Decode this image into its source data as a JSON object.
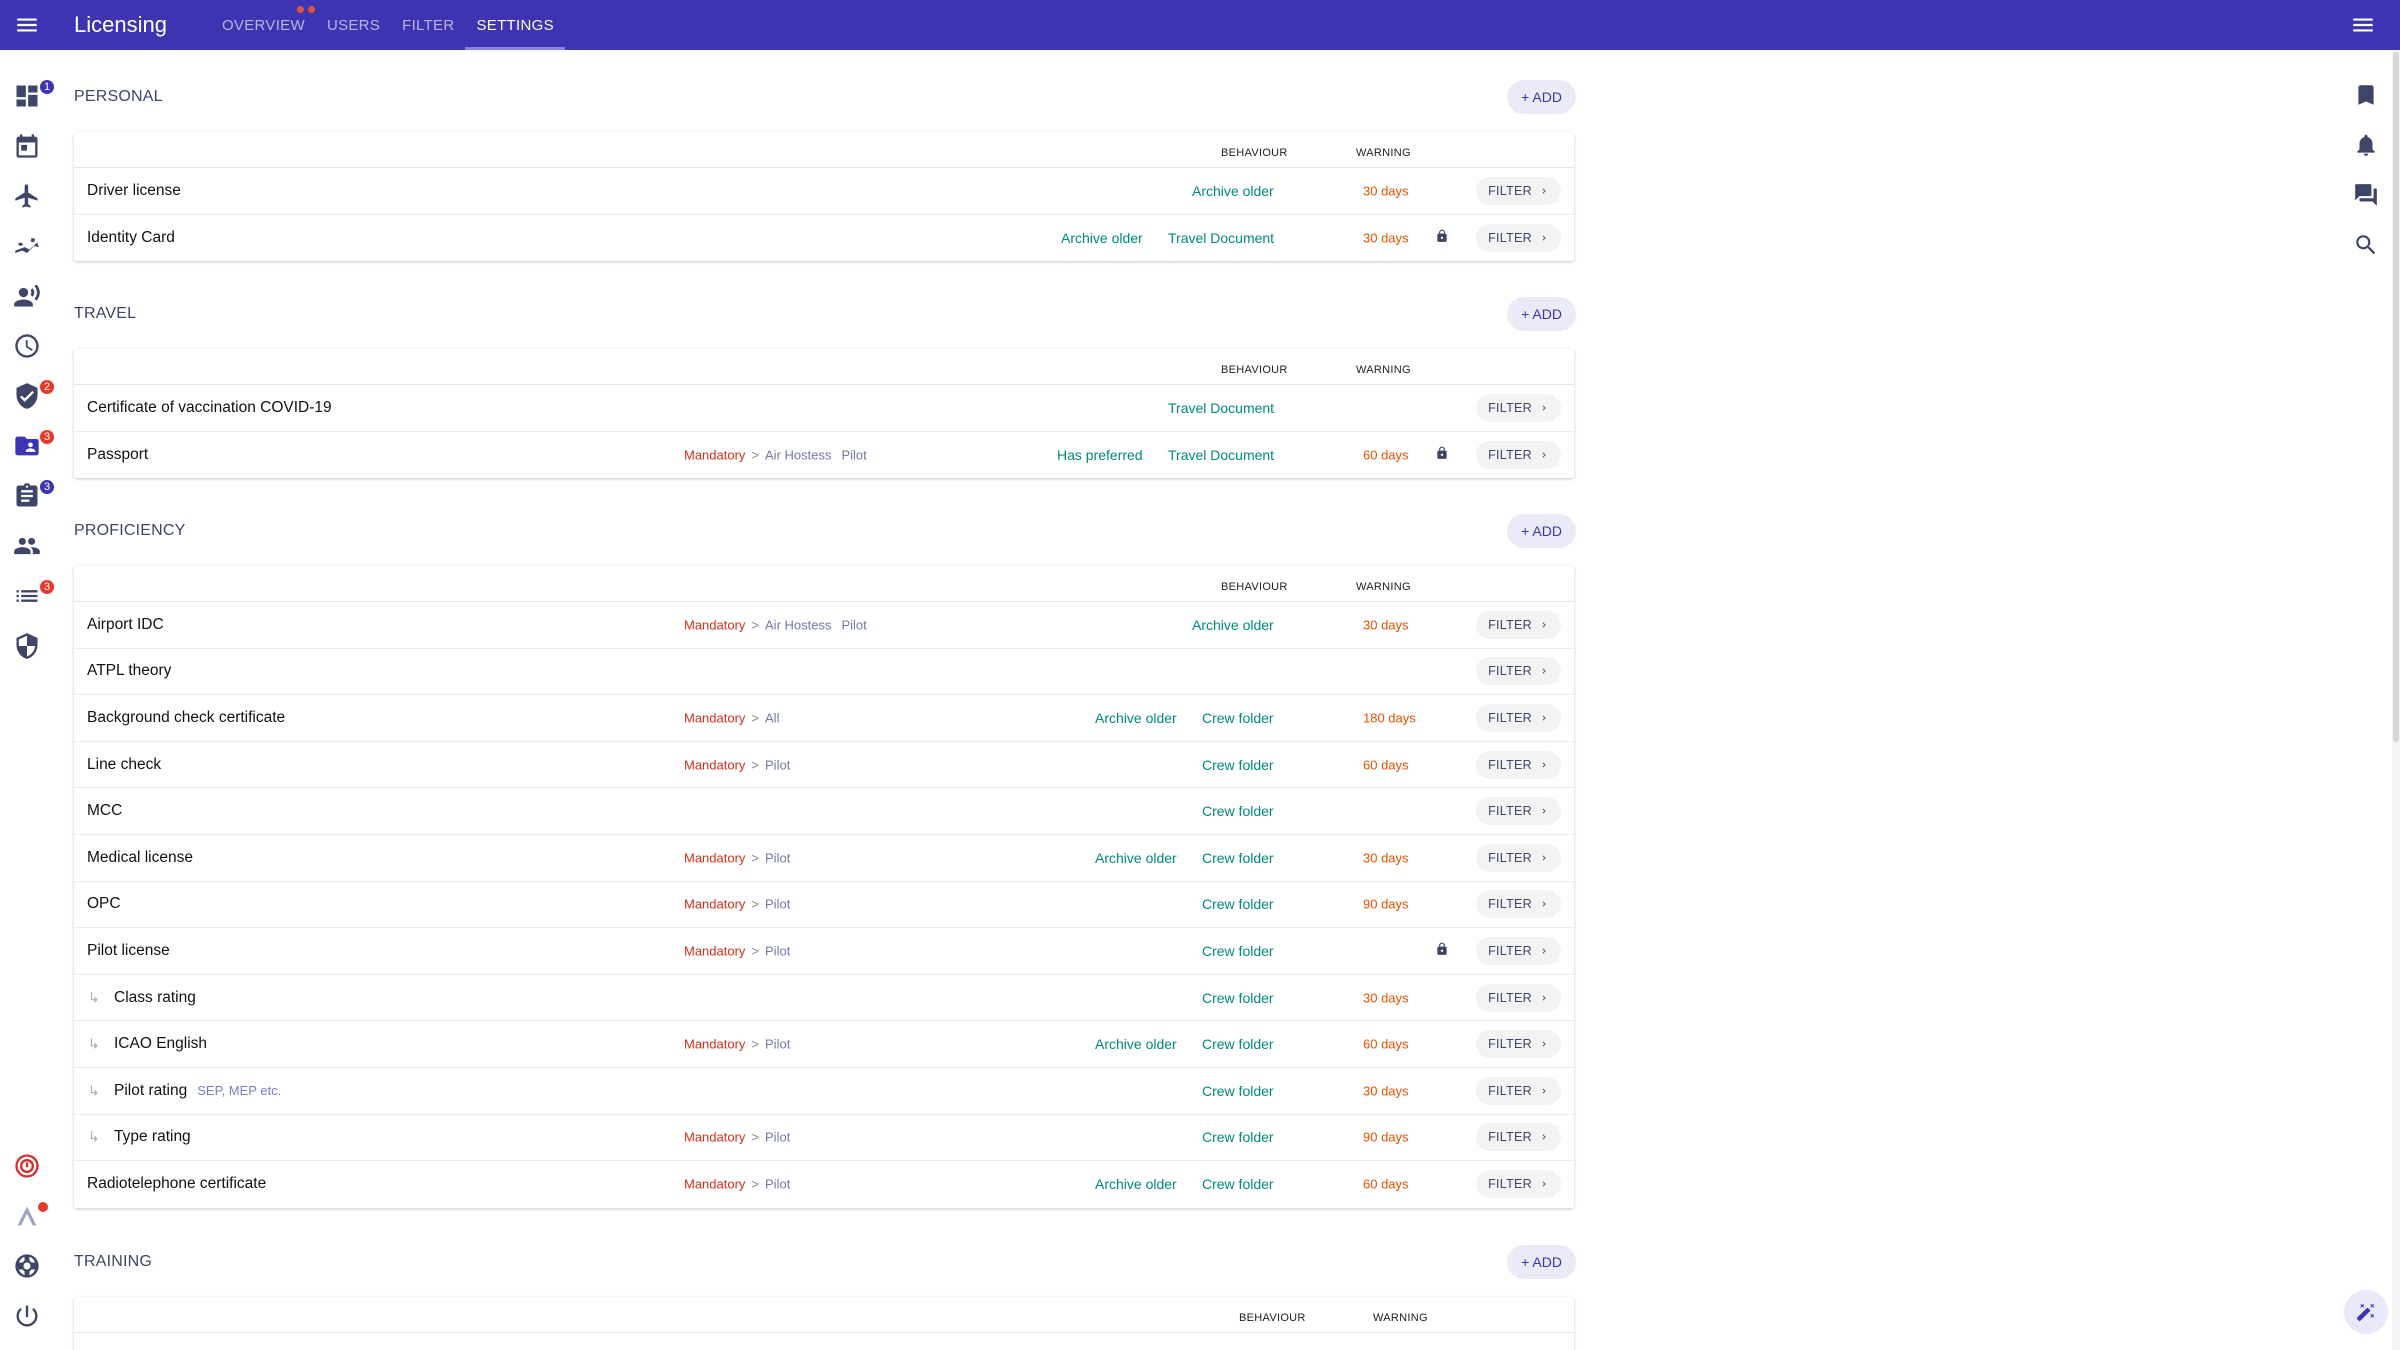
{
  "app": {
    "title": "Licensing"
  },
  "tabs": [
    {
      "label": "OVERVIEW"
    },
    {
      "label": "USERS"
    },
    {
      "label": "FILTER"
    },
    {
      "label": "SETTINGS"
    }
  ],
  "left_rail": {
    "badges": {
      "dashboard": "1",
      "verified": "2",
      "licensing": "3",
      "assignment": "3",
      "list": "3"
    }
  },
  "columns": {
    "behaviour": "BEHAVIOUR",
    "warning": "WARNING"
  },
  "buttons": {
    "add": "+ ADD",
    "filter": "FILTER"
  },
  "sections": {
    "personal": {
      "title": "PERSONAL",
      "rows": [
        {
          "name": "Driver license",
          "archive": "Archive older",
          "warning": "30 days"
        },
        {
          "name": "Identity Card",
          "archive": "Archive older",
          "folder": "Travel Document",
          "warning": "30 days",
          "locked": true
        }
      ]
    },
    "travel": {
      "title": "TRAVEL",
      "rows": [
        {
          "name": "Certificate of vaccination COVID-19",
          "folder": "Travel Document"
        },
        {
          "name": "Passport",
          "mandatory": "Mandatory",
          "roles": [
            "Air Hostess",
            "Pilot"
          ],
          "preferred": "Has preferred",
          "folder": "Travel Document",
          "warning": "60 days",
          "locked": true
        }
      ]
    },
    "proficiency": {
      "title": "PROFICIENCY",
      "rows": [
        {
          "name": "Airport IDC",
          "mandatory": "Mandatory",
          "roles": [
            "Air Hostess",
            "Pilot"
          ],
          "archive": "Archive older",
          "warning": "30 days"
        },
        {
          "name": "ATPL theory"
        },
        {
          "name": "Background check certificate",
          "mandatory": "Mandatory",
          "roles": [
            "All"
          ],
          "archive": "Archive older",
          "folder": "Crew folder",
          "warning": "180 days"
        },
        {
          "name": "Line check",
          "mandatory": "Mandatory",
          "roles": [
            "Pilot"
          ],
          "folder": "Crew folder",
          "warning": "60 days"
        },
        {
          "name": "MCC",
          "folder": "Crew folder"
        },
        {
          "name": "Medical license",
          "mandatory": "Mandatory",
          "roles": [
            "Pilot"
          ],
          "archive": "Archive older",
          "folder": "Crew folder",
          "warning": "30 days"
        },
        {
          "name": "OPC",
          "mandatory": "Mandatory",
          "roles": [
            "Pilot"
          ],
          "folder": "Crew folder",
          "warning": "90 days"
        },
        {
          "name": "Pilot license",
          "mandatory": "Mandatory",
          "roles": [
            "Pilot"
          ],
          "folder": "Crew folder",
          "locked": true
        },
        {
          "name": "Class rating",
          "child": true,
          "folder": "Crew folder",
          "warning": "30 days"
        },
        {
          "name": "ICAO English",
          "child": true,
          "mandatory": "Mandatory",
          "roles": [
            "Pilot"
          ],
          "archive": "Archive older",
          "folder": "Crew folder",
          "warning": "60 days"
        },
        {
          "name": "Pilot rating",
          "child": true,
          "hint": "SEP, MEP etc.",
          "folder": "Crew folder",
          "warning": "30 days"
        },
        {
          "name": "Type rating",
          "child": true,
          "mandatory": "Mandatory",
          "roles": [
            "Pilot"
          ],
          "folder": "Crew folder",
          "warning": "90 days"
        },
        {
          "name": "Radiotelephone certificate",
          "mandatory": "Mandatory",
          "roles": [
            "Pilot"
          ],
          "archive": "Archive older",
          "folder": "Crew folder",
          "warning": "60 days"
        }
      ]
    },
    "training": {
      "title": "TRAINING"
    }
  }
}
